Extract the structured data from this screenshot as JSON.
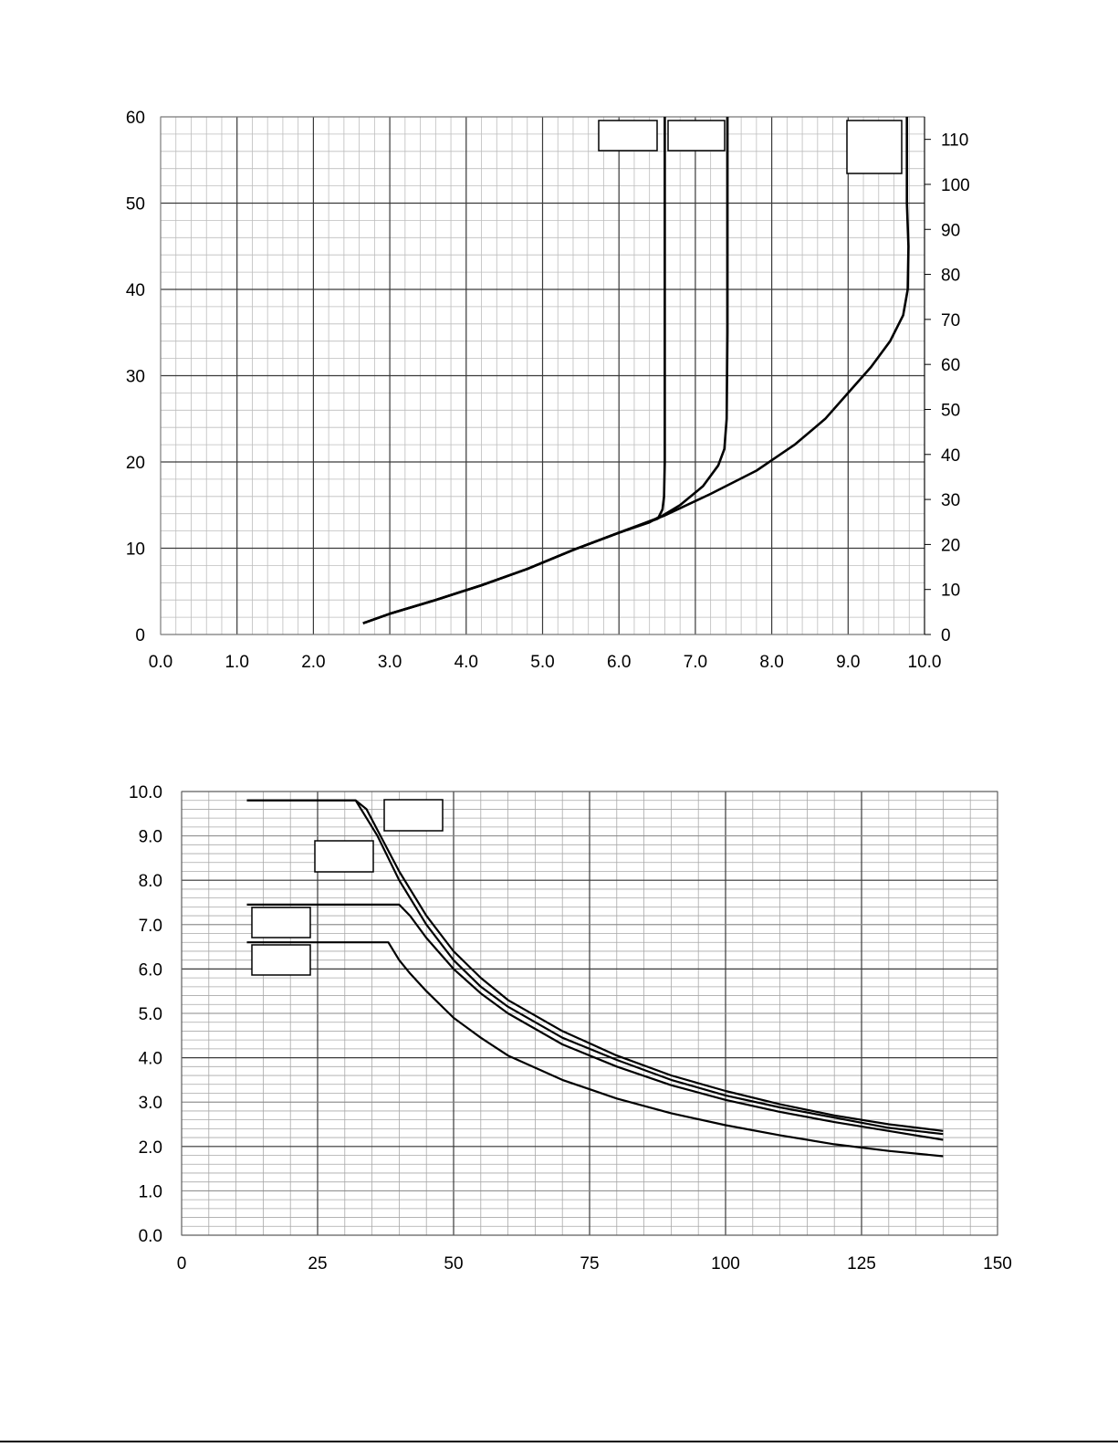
{
  "chart_data": [
    {
      "type": "line",
      "x_ticks": [
        "0.0",
        "1.0",
        "2.0",
        "3.0",
        "4.0",
        "5.0",
        "6.0",
        "7.0",
        "8.0",
        "9.0",
        "10.0"
      ],
      "y_ticks": [
        "0",
        "10",
        "20",
        "30",
        "40",
        "50",
        "60"
      ],
      "y2_ticks": [
        "0",
        "10",
        "20",
        "30",
        "40",
        "50",
        "60",
        "70",
        "80",
        "90",
        "100",
        "110"
      ],
      "xlim": [
        0,
        10
      ],
      "ylim": [
        0,
        60
      ],
      "y2lim": [
        0,
        115
      ],
      "grid": true,
      "series": [
        {
          "values": [
            [
              2.65,
              1.3
            ],
            [
              3.0,
              2.4
            ],
            [
              3.6,
              4.0
            ],
            [
              4.2,
              5.7
            ],
            [
              4.8,
              7.6
            ],
            [
              5.4,
              9.8
            ],
            [
              6.0,
              11.8
            ],
            [
              6.4,
              13.0
            ],
            [
              6.52,
              13.6
            ],
            [
              6.57,
              14.5
            ],
            [
              6.59,
              16
            ],
            [
              6.6,
              20
            ],
            [
              6.6,
              30
            ],
            [
              6.6,
              45
            ],
            [
              6.6,
              60
            ]
          ]
        },
        {
          "values": [
            [
              2.65,
              1.3
            ],
            [
              3.0,
              2.4
            ],
            [
              3.6,
              4.0
            ],
            [
              4.2,
              5.7
            ],
            [
              4.8,
              7.6
            ],
            [
              5.4,
              9.8
            ],
            [
              6.0,
              11.8
            ],
            [
              6.5,
              13.4
            ],
            [
              6.8,
              15.0
            ],
            [
              7.1,
              17.2
            ],
            [
              7.3,
              19.6
            ],
            [
              7.38,
              21.5
            ],
            [
              7.41,
              25
            ],
            [
              7.42,
              35
            ],
            [
              7.42,
              60
            ]
          ]
        },
        {
          "values": [
            [
              2.65,
              1.3
            ],
            [
              3.0,
              2.4
            ],
            [
              3.6,
              4.0
            ],
            [
              4.2,
              5.7
            ],
            [
              4.8,
              7.6
            ],
            [
              5.4,
              9.8
            ],
            [
              6.0,
              11.8
            ],
            [
              6.6,
              13.8
            ],
            [
              7.2,
              16.3
            ],
            [
              7.8,
              19.0
            ],
            [
              8.3,
              22.0
            ],
            [
              8.7,
              25.0
            ],
            [
              9.0,
              28.0
            ],
            [
              9.3,
              31.0
            ],
            [
              9.55,
              34.0
            ],
            [
              9.72,
              37.0
            ],
            [
              9.78,
              40.0
            ],
            [
              9.79,
              45.0
            ],
            [
              9.77,
              50.0
            ],
            [
              9.77,
              60.0
            ]
          ]
        }
      ],
      "label_boxes": 3
    },
    {
      "type": "line",
      "x_ticks": [
        "0",
        "25",
        "50",
        "75",
        "100",
        "125",
        "150"
      ],
      "y_ticks": [
        "0.0",
        "1.0",
        "2.0",
        "3.0",
        "4.0",
        "5.0",
        "6.0",
        "7.0",
        "8.0",
        "9.0",
        "10.0"
      ],
      "xlim": [
        0,
        150
      ],
      "ylim": [
        0,
        10
      ],
      "grid": true,
      "series": [
        {
          "values": [
            [
              12,
              9.8
            ],
            [
              32,
              9.8
            ],
            [
              34,
              9.6
            ],
            [
              37,
              8.9
            ],
            [
              40,
              8.2
            ],
            [
              45,
              7.2
            ],
            [
              50,
              6.4
            ],
            [
              55,
              5.8
            ],
            [
              60,
              5.3
            ],
            [
              70,
              4.6
            ],
            [
              80,
              4.05
            ],
            [
              90,
              3.6
            ],
            [
              100,
              3.25
            ],
            [
              110,
              2.95
            ],
            [
              120,
              2.7
            ],
            [
              130,
              2.5
            ],
            [
              140,
              2.35
            ]
          ]
        },
        {
          "values": [
            [
              12,
              9.8
            ],
            [
              32,
              9.8
            ],
            [
              36,
              9.0
            ],
            [
              40,
              8.0
            ],
            [
              45,
              7.0
            ],
            [
              50,
              6.2
            ],
            [
              55,
              5.6
            ],
            [
              60,
              5.15
            ],
            [
              70,
              4.45
            ],
            [
              80,
              3.95
            ],
            [
              90,
              3.5
            ],
            [
              100,
              3.15
            ],
            [
              110,
              2.88
            ],
            [
              120,
              2.65
            ],
            [
              130,
              2.42
            ],
            [
              140,
              2.28
            ]
          ]
        },
        {
          "values": [
            [
              12,
              7.45
            ],
            [
              40,
              7.45
            ],
            [
              42,
              7.2
            ],
            [
              45,
              6.7
            ],
            [
              50,
              6.0
            ],
            [
              55,
              5.45
            ],
            [
              60,
              5.0
            ],
            [
              70,
              4.3
            ],
            [
              80,
              3.8
            ],
            [
              90,
              3.38
            ],
            [
              100,
              3.05
            ],
            [
              110,
              2.78
            ],
            [
              120,
              2.55
            ],
            [
              130,
              2.35
            ],
            [
              140,
              2.15
            ]
          ]
        },
        {
          "values": [
            [
              12,
              6.6
            ],
            [
              38,
              6.6
            ],
            [
              40,
              6.2
            ],
            [
              42,
              5.9
            ],
            [
              45,
              5.5
            ],
            [
              50,
              4.9
            ],
            [
              55,
              4.45
            ],
            [
              60,
              4.05
            ],
            [
              70,
              3.5
            ],
            [
              80,
              3.08
            ],
            [
              90,
              2.75
            ],
            [
              100,
              2.48
            ],
            [
              110,
              2.25
            ],
            [
              120,
              2.05
            ],
            [
              130,
              1.9
            ],
            [
              140,
              1.78
            ]
          ]
        }
      ],
      "label_boxes": 4
    }
  ]
}
